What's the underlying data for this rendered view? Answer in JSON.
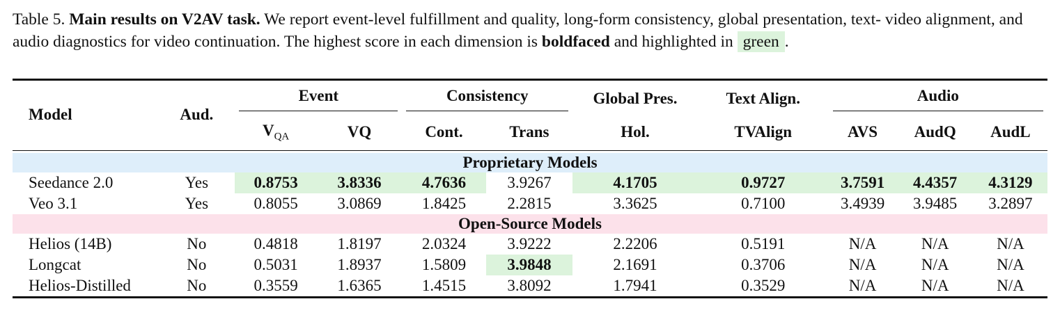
{
  "caption": {
    "label": "Table 5.",
    "title": "Main results on V2AV task.",
    "text1": " We report event-level fulfillment and quality, long-form consistency, global presentation, text- video alignment, and audio diagnostics for video continuation. The highest score in each dimension is ",
    "bold_word": "boldfaced",
    "text2": " and highlighted in ",
    "highlight_word": "green",
    "end": "."
  },
  "header": {
    "model": "Model",
    "aud": "Aud.",
    "groups": [
      "Event",
      "Consistency",
      "Global Pres.",
      "Text Align.",
      "Audio"
    ],
    "vqa_main": "V",
    "vqa_sub": "QA",
    "columns": [
      "VQ",
      "Cont.",
      "Trans",
      "Hol.",
      "TVAlign",
      "AVS",
      "AudQ",
      "AudL"
    ]
  },
  "sections": {
    "proprietary": "Proprietary Models",
    "open_source": "Open-Source Models"
  },
  "rows": [
    {
      "model": "Seedance 2.0",
      "aud": "Yes",
      "vals": [
        "0.8753",
        "3.8336",
        "4.7636",
        "3.9267",
        "4.1705",
        "0.9727",
        "3.7591",
        "4.4357",
        "4.3129"
      ]
    },
    {
      "model": "Veo 3.1",
      "aud": "Yes",
      "vals": [
        "0.8055",
        "3.0869",
        "1.8425",
        "2.2815",
        "3.3625",
        "0.7100",
        "3.4939",
        "3.9485",
        "3.2897"
      ]
    },
    {
      "model": "Helios (14B)",
      "aud": "No",
      "vals": [
        "0.4818",
        "1.8197",
        "2.0324",
        "3.9222",
        "2.2206",
        "0.5191",
        "N/A",
        "N/A",
        "N/A"
      ]
    },
    {
      "model": "Longcat",
      "aud": "No",
      "vals": [
        "0.5031",
        "1.8937",
        "1.5809",
        "3.9848",
        "2.1691",
        "0.3706",
        "N/A",
        "N/A",
        "N/A"
      ]
    },
    {
      "model": "Helios-Distilled",
      "aud": "No",
      "vals": [
        "0.3559",
        "1.6365",
        "1.4515",
        "3.8092",
        "1.7941",
        "0.3529",
        "N/A",
        "N/A",
        "N/A"
      ]
    }
  ],
  "colors": {
    "highlight": "#dcf3dc",
    "proprietary_band": "#deeefa",
    "open_source_band": "#fce1ea"
  }
}
